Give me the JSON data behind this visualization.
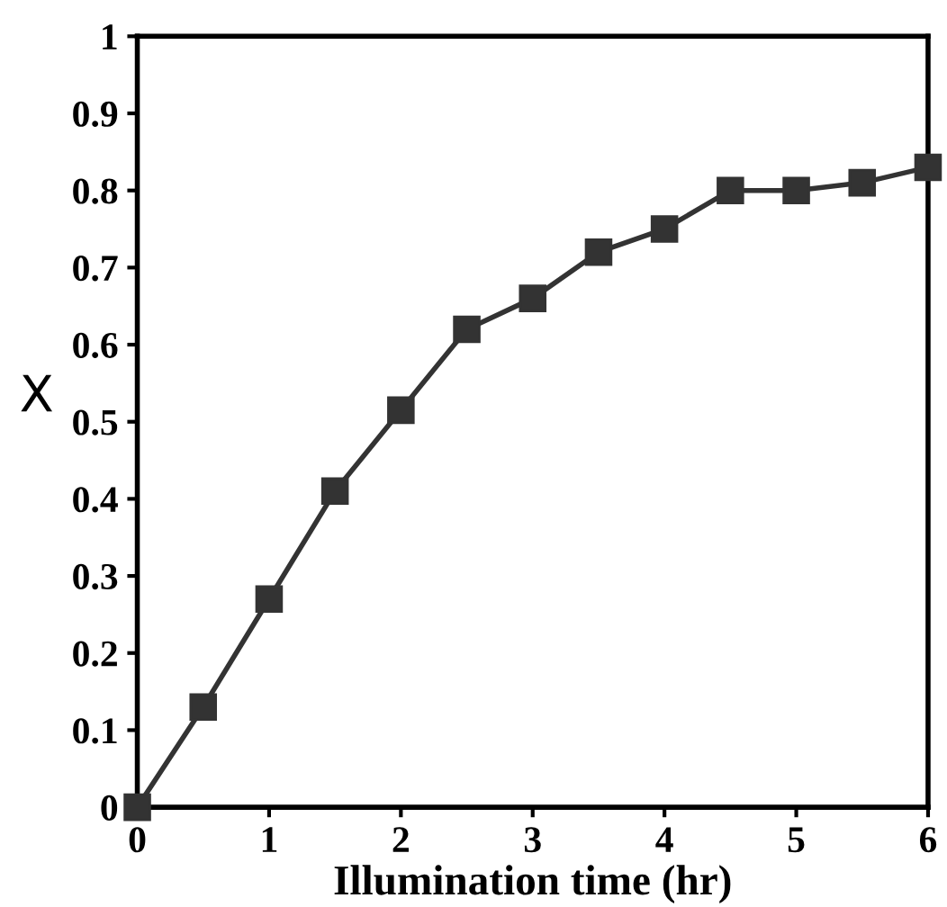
{
  "chart_data": {
    "type": "line",
    "xlabel": "Illumination time (hr)",
    "ylabel": "X",
    "x": [
      0,
      0.5,
      1,
      1.5,
      2,
      2.5,
      3,
      3.5,
      4,
      4.5,
      5,
      5.5,
      6
    ],
    "series": [
      {
        "color": "#333333",
        "values": [
          0,
          0.13,
          0.27,
          0.41,
          0.515,
          0.62,
          0.66,
          0.72,
          0.75,
          0.8,
          0.8,
          0.81,
          0.83
        ]
      }
    ],
    "xlim": [
      0,
      6
    ],
    "ylim": [
      0,
      1
    ],
    "xticks": [
      0,
      1,
      2,
      3,
      4,
      5,
      6
    ],
    "yticks": [
      0,
      0.1,
      0.2,
      0.3,
      0.4,
      0.5,
      0.6,
      0.7,
      0.8,
      0.9,
      1
    ],
    "marker": "square",
    "line_style": "solid",
    "grid": false,
    "legend": false
  }
}
